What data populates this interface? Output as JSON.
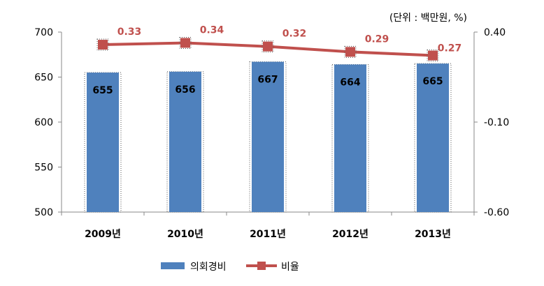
{
  "chart_data": {
    "type": "bar",
    "unit_note": "(단위 : 백만원, %)",
    "categories": [
      "2009년",
      "2010년",
      "2011년",
      "2012년",
      "2013년"
    ],
    "series": [
      {
        "name": "의회경비",
        "type": "bar",
        "axis": "left",
        "color": "#4F81BD",
        "values": [
          655,
          656,
          667,
          664,
          665
        ],
        "labels": [
          "655",
          "656",
          "667",
          "664",
          "665"
        ]
      },
      {
        "name": "비율",
        "type": "line",
        "axis": "right",
        "color": "#C0504D",
        "values": [
          0.33,
          0.34,
          0.32,
          0.29,
          0.27
        ],
        "labels": [
          "0.33",
          "0.34",
          "0.32",
          "0.29",
          "0.27"
        ]
      }
    ],
    "y_left": {
      "min": 500,
      "max": 700,
      "ticks": [
        "700",
        "650",
        "600",
        "550",
        "500"
      ]
    },
    "y_right": {
      "min": -0.6,
      "max": 0.4,
      "ticks": [
        "0.40",
        "-0.10",
        "-0.60"
      ]
    },
    "legend_position": "bottom",
    "grid": false
  }
}
